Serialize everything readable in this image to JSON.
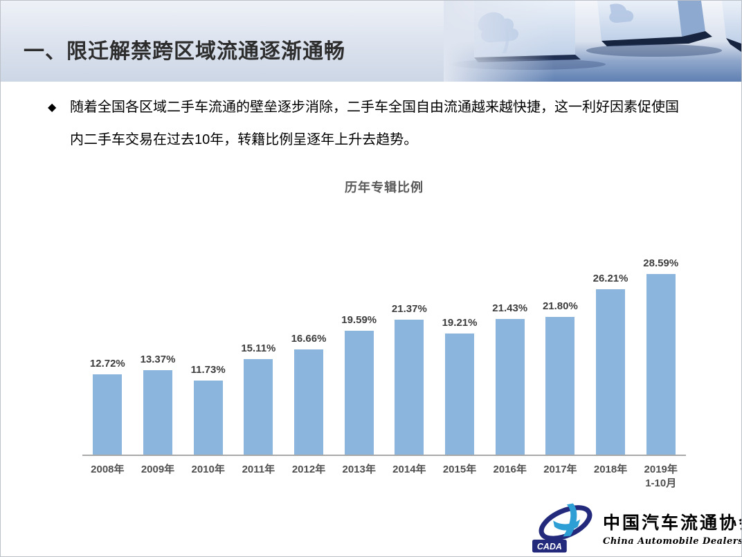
{
  "slide": {
    "header": {
      "title": "一、限迁解禁跨区域流通逐渐通畅"
    },
    "bullet": {
      "marker": "◆",
      "text": "随着全国各区域二手车流通的壁垒逐步消除，二手车全国自由流通越来越快捷，这一利好因素促使国内二手车交易在过去10年，转籍比例呈逐年上升去趋势。"
    },
    "logo": {
      "cada": "CADA",
      "name_cn": "中国汽车流通协会",
      "name_en": "China Automobile Dealers Association"
    }
  },
  "chart_data": {
    "type": "bar",
    "title": "历年专辑比例",
    "categories": [
      "2008年",
      "2009年",
      "2010年",
      "2011年",
      "2012年",
      "2013年",
      "2014年",
      "2015年",
      "2016年",
      "2017年",
      "2018年",
      "2019年\n1-10月"
    ],
    "values": [
      12.72,
      13.37,
      11.73,
      15.11,
      16.66,
      19.59,
      21.37,
      19.21,
      21.43,
      21.8,
      26.21,
      28.59
    ],
    "labels": [
      "12.72%",
      "13.37%",
      "11.73%",
      "15.11%",
      "16.66%",
      "19.59%",
      "21.37%",
      "19.21%",
      "21.43%",
      "21.80%",
      "26.21%",
      "28.59%"
    ],
    "xlabel": "",
    "ylabel": "",
    "ylim": [
      0,
      30
    ],
    "grid": false,
    "legend": false,
    "bar_color": "#8CB5DD",
    "label_color": "#3c3c3c",
    "axis_color": "#a8a8a8"
  }
}
